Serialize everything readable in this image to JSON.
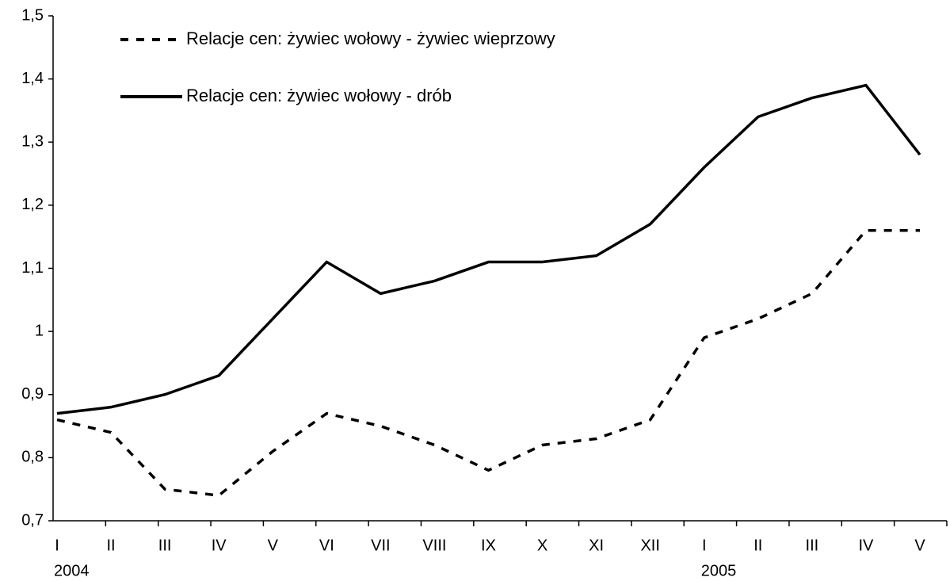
{
  "chart_data": {
    "type": "line",
    "categories": [
      "I",
      "II",
      "III",
      "IV",
      "V",
      "VI",
      "VII",
      "VIII",
      "IX",
      "X",
      "XI",
      "XII",
      "I",
      "II",
      "III",
      "IV",
      "V"
    ],
    "categories2": [
      "2004",
      null,
      null,
      null,
      null,
      null,
      null,
      null,
      null,
      null,
      null,
      null,
      "2005",
      null,
      null,
      null,
      null
    ],
    "series": [
      {
        "name": "Relacje cen: żywiec wołowy - żywiec wieprzowy",
        "color": "#000000",
        "dashed": true,
        "values": [
          0.86,
          0.84,
          0.75,
          0.74,
          0.81,
          0.87,
          0.85,
          0.82,
          0.78,
          0.82,
          0.83,
          0.86,
          0.99,
          1.02,
          1.06,
          1.16,
          1.16
        ]
      },
      {
        "name": "Relacje cen: żywiec wołowy - drób",
        "color": "#000000",
        "dashed": false,
        "values": [
          0.87,
          0.88,
          0.9,
          0.93,
          1.02,
          1.11,
          1.06,
          1.08,
          1.11,
          1.11,
          1.12,
          1.17,
          1.26,
          1.34,
          1.37,
          1.39,
          1.28
        ]
      }
    ],
    "ylim": [
      0.7,
      1.5
    ],
    "yticks": [
      {
        "value": 0.7,
        "label": "0,7"
      },
      {
        "value": 0.8,
        "label": "0,8"
      },
      {
        "value": 0.9,
        "label": "0,9"
      },
      1,
      {
        "value": 1.1,
        "label": "1,1"
      },
      {
        "value": 1.2,
        "label": "1,2"
      },
      {
        "value": 1.3,
        "label": "1,3"
      },
      {
        "value": 1.4,
        "label": "1,4"
      },
      {
        "value": 1.5,
        "label": "1,5"
      }
    ],
    "grid": false,
    "legend": "top-left"
  }
}
